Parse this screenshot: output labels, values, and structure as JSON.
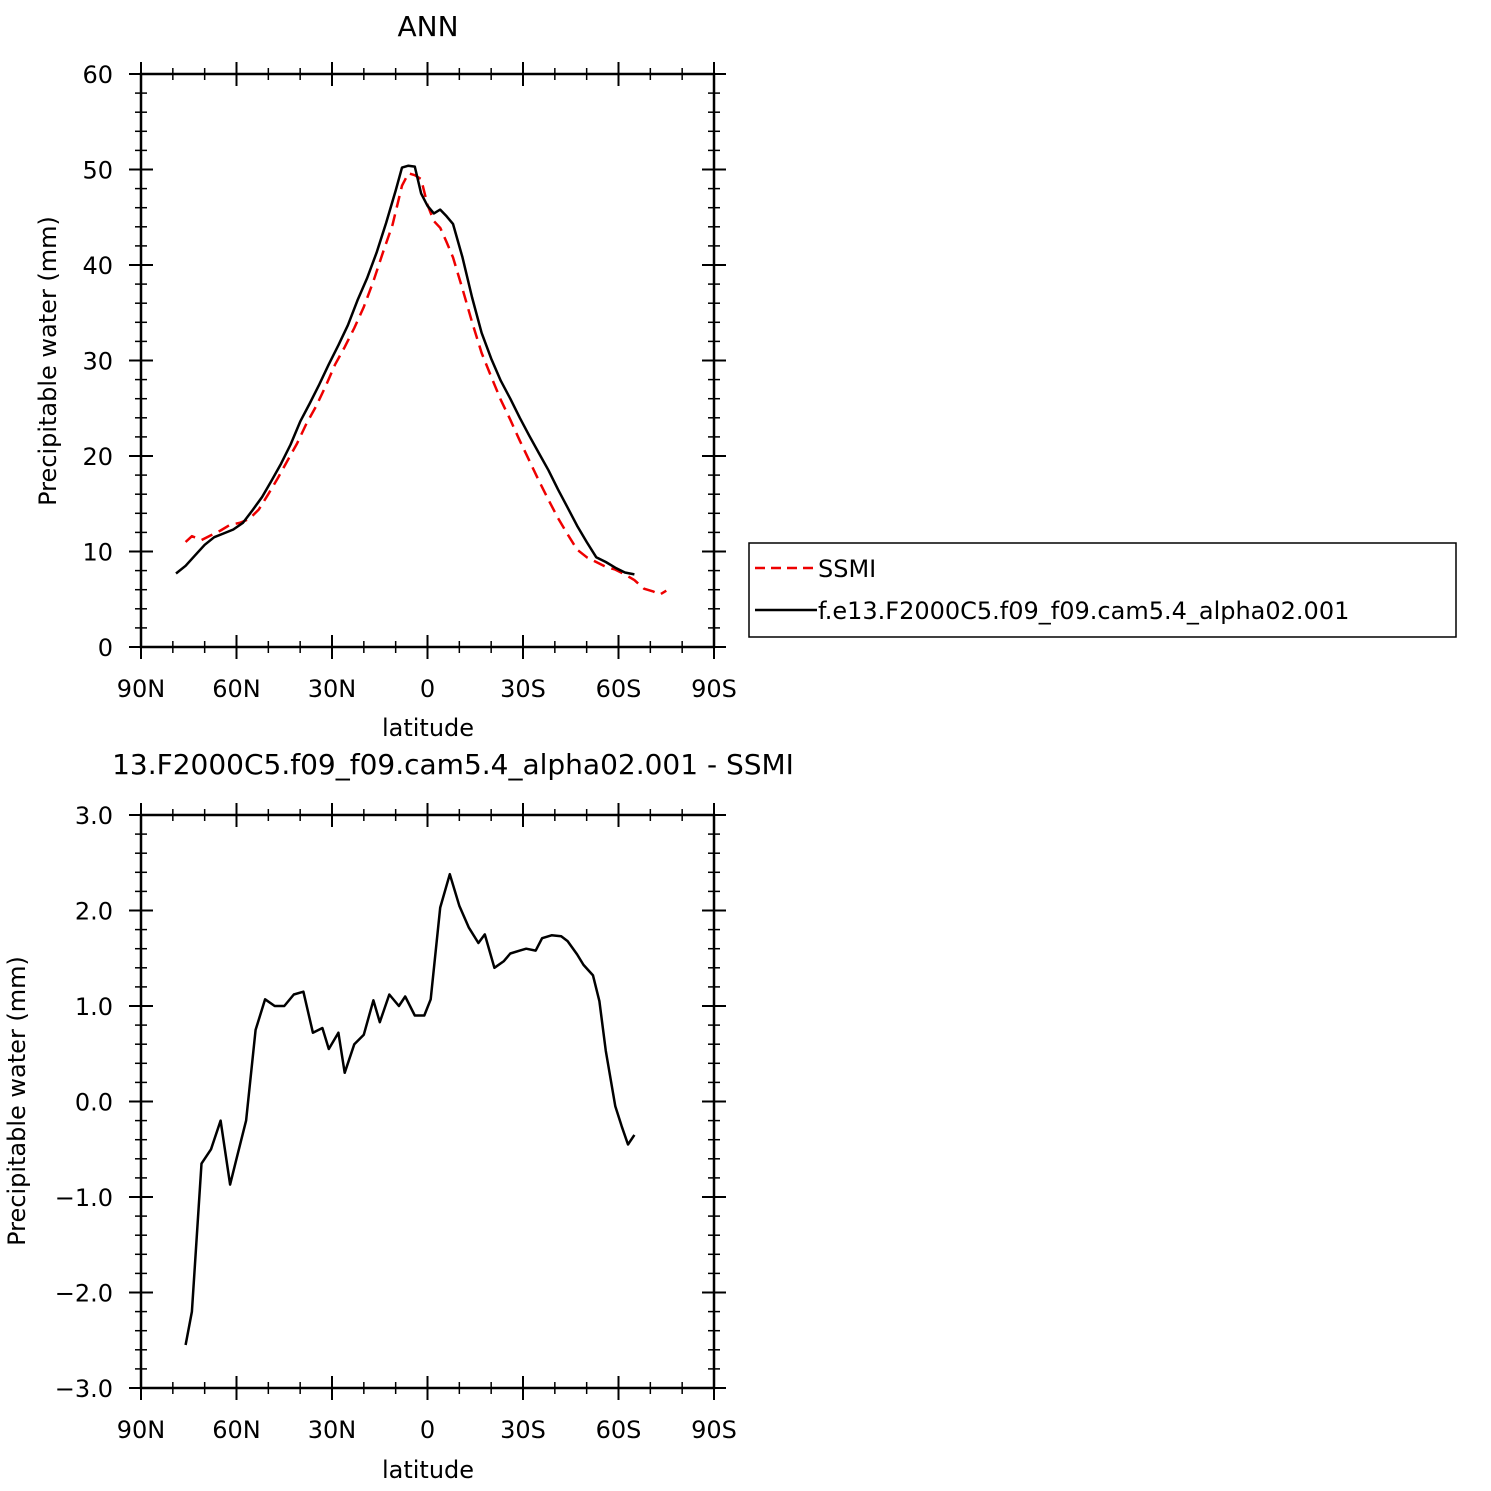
{
  "chart_data": [
    {
      "type": "line",
      "title": "ANN",
      "xlabel": "latitude",
      "ylabel": "Precipitable water (mm)",
      "xlim": [
        -90,
        90
      ],
      "ylim": [
        0,
        60
      ],
      "x_ticks": [
        -90,
        -60,
        -30,
        0,
        30,
        60,
        90
      ],
      "x_tick_labels": [
        "90N",
        "60N",
        "30N",
        "0",
        "30S",
        "60S",
        "90S"
      ],
      "y_ticks": [
        0,
        10,
        20,
        30,
        40,
        50,
        60
      ],
      "y_tick_labels": [
        "0",
        "10",
        "20",
        "30",
        "40",
        "50",
        "60"
      ],
      "legend": {
        "position": "right"
      },
      "series": [
        {
          "name": "SSMI",
          "color": "#ee0000",
          "dash": "dashed",
          "x": [
            -76,
            -74,
            -71,
            -68,
            -65,
            -62,
            -59,
            -56,
            -53,
            -50,
            -47,
            -44,
            -41,
            -38,
            -35,
            -32,
            -29,
            -26,
            -23,
            -20,
            -17,
            -14,
            -11,
            -8,
            -6,
            -4,
            -2,
            0,
            2,
            4,
            6,
            8,
            11,
            14,
            17,
            20,
            23,
            26,
            29,
            32,
            35,
            38,
            41,
            44,
            47,
            50,
            53,
            56,
            59,
            62,
            65,
            68,
            71,
            73,
            75
          ],
          "y": [
            11,
            11.6,
            11.2,
            11.7,
            12.2,
            12.8,
            13.0,
            13.4,
            14.4,
            16.0,
            17.7,
            19.5,
            21.3,
            23.4,
            25.2,
            27.3,
            29.6,
            31.4,
            33.4,
            35.6,
            38.3,
            41.3,
            44.2,
            48.3,
            49.6,
            49.4,
            49.0,
            46.3,
            44.6,
            43.9,
            42.4,
            40.8,
            37.5,
            34.0,
            30.8,
            28.3,
            25.9,
            23.8,
            21.6,
            19.5,
            17.4,
            15.4,
            13.5,
            11.8,
            10.2,
            9.4,
            8.9,
            8.4,
            8.1,
            7.6,
            7.0,
            6.1,
            5.8,
            5.5,
            5.9
          ]
        },
        {
          "name": "f.e13.F2000C5.f09_f09.cam5.4_alpha02.001",
          "color": "#000000",
          "dash": "solid",
          "x": [
            -79,
            -76,
            -73,
            -70,
            -67,
            -64,
            -61,
            -58,
            -55,
            -52,
            -49,
            -46,
            -43,
            -40,
            -37,
            -34,
            -31,
            -28,
            -25,
            -22,
            -19,
            -16,
            -13,
            -10,
            -8,
            -6,
            -4,
            -2,
            0,
            2,
            4,
            6,
            8,
            11,
            14,
            17,
            20,
            23,
            26,
            29,
            32,
            35,
            38,
            41,
            44,
            47,
            50,
            53,
            56,
            59,
            62,
            65
          ],
          "y": [
            7.7,
            8.5,
            9.6,
            10.7,
            11.5,
            11.9,
            12.3,
            13.0,
            14.3,
            15.7,
            17.4,
            19.2,
            21.2,
            23.6,
            25.5,
            27.5,
            29.6,
            31.6,
            33.7,
            36.3,
            38.6,
            41.3,
            44.4,
            47.8,
            50.2,
            50.4,
            50.3,
            47.5,
            46.2,
            45.4,
            45.8,
            45.1,
            44.3,
            40.8,
            36.6,
            32.9,
            30.2,
            27.9,
            26.0,
            24.0,
            22.1,
            20.3,
            18.5,
            16.5,
            14.6,
            12.7,
            11.0,
            9.4,
            8.9,
            8.3,
            7.8,
            7.6
          ]
        }
      ]
    },
    {
      "type": "line",
      "title": "13.F2000C5.f09_f09.cam5.4_alpha02.001 - SSMI",
      "xlabel": "latitude",
      "ylabel": "Precipitable water (mm)",
      "xlim": [
        -90,
        90
      ],
      "ylim": [
        -3.0,
        3.0
      ],
      "x_ticks": [
        -90,
        -60,
        -30,
        0,
        30,
        60,
        90
      ],
      "x_tick_labels": [
        "90N",
        "60N",
        "30N",
        "0",
        "30S",
        "60S",
        "90S"
      ],
      "y_ticks": [
        -3,
        -2,
        -1,
        0,
        1,
        2,
        3
      ],
      "y_tick_labels": [
        "−3.0",
        "−2.0",
        "−1.0",
        "0.0",
        "1.0",
        "2.0",
        "3.0"
      ],
      "series": [
        {
          "color": "#000000",
          "dash": "solid",
          "x": [
            -76,
            -74,
            -71,
            -68,
            -65,
            -62,
            -60,
            -57,
            -54,
            -51,
            -48,
            -45,
            -42,
            -39,
            -36,
            -33,
            -31,
            -28,
            -26,
            -23,
            -20,
            -17,
            -15,
            -12,
            -9,
            -7,
            -4,
            -1,
            1,
            4,
            7,
            10,
            13,
            16,
            18,
            21,
            24,
            26,
            29,
            31,
            34,
            36,
            39,
            42,
            44,
            47,
            49,
            52,
            54,
            56,
            59,
            61,
            63,
            65
          ],
          "y": [
            -2.55,
            -2.2,
            -0.65,
            -0.5,
            -0.2,
            -0.87,
            -0.6,
            -0.2,
            0.75,
            1.07,
            1.0,
            1.0,
            1.12,
            1.15,
            0.72,
            0.77,
            0.55,
            0.72,
            0.3,
            0.6,
            0.7,
            1.06,
            0.83,
            1.12,
            1.0,
            1.1,
            0.9,
            0.9,
            1.07,
            2.03,
            2.38,
            2.05,
            1.82,
            1.66,
            1.75,
            1.4,
            1.47,
            1.55,
            1.58,
            1.6,
            1.58,
            1.71,
            1.74,
            1.73,
            1.68,
            1.54,
            1.43,
            1.32,
            1.05,
            0.53,
            -0.05,
            -0.26,
            -0.45,
            -0.35
          ]
        }
      ]
    }
  ]
}
